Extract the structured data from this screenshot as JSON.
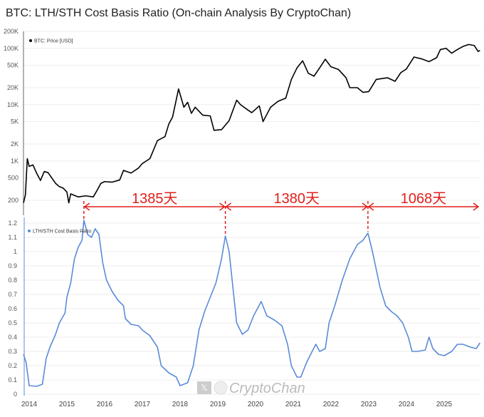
{
  "title": "BTC: LTH/STH Cost Basis Ratio (On-chain Analysis By CryptoChan)",
  "watermark": "CryptoChan",
  "colors": {
    "price": "#000000",
    "ratio": "#5b8bd9",
    "annotation": "#e0201b"
  },
  "chart_data": [
    {
      "type": "line",
      "scale": "log",
      "series": [
        {
          "name": "BTC: Price [USD]",
          "color": "#000000",
          "x": [
            2013.85,
            2013.9,
            2013.95,
            2014.0,
            2014.1,
            2014.2,
            2014.3,
            2014.4,
            2014.5,
            2014.7,
            2014.8,
            2014.9,
            2015.0,
            2015.05,
            2015.1,
            2015.3,
            2015.5,
            2015.7,
            2015.8,
            2015.9,
            2016.0,
            2016.2,
            2016.4,
            2016.5,
            2016.7,
            2016.9,
            2017.0,
            2017.2,
            2017.4,
            2017.6,
            2017.7,
            2017.8,
            2017.96,
            2018.1,
            2018.2,
            2018.3,
            2018.4,
            2018.6,
            2018.8,
            2018.9,
            2019.1,
            2019.3,
            2019.5,
            2019.6,
            2019.8,
            2019.9,
            2020.1,
            2020.2,
            2020.4,
            2020.6,
            2020.8,
            2020.95,
            2021.1,
            2021.25,
            2021.4,
            2021.55,
            2021.7,
            2021.85,
            2022.0,
            2022.2,
            2022.4,
            2022.5,
            2022.7,
            2022.85,
            2023.0,
            2023.2,
            2023.5,
            2023.7,
            2023.85,
            2024.0,
            2024.2,
            2024.4,
            2024.6,
            2024.8,
            2024.9,
            2025.05,
            2025.2,
            2025.35,
            2025.5,
            2025.65,
            2025.8,
            2025.9,
            2025.95
          ],
          "y": [
            180,
            250,
            1100,
            800,
            850,
            600,
            450,
            650,
            620,
            400,
            350,
            330,
            280,
            180,
            260,
            230,
            240,
            230,
            300,
            400,
            430,
            420,
            460,
            680,
            610,
            750,
            900,
            1100,
            2300,
            2700,
            4500,
            6000,
            19000,
            9000,
            11000,
            7000,
            9000,
            6500,
            6300,
            3500,
            3600,
            5200,
            12000,
            10000,
            8000,
            7200,
            9500,
            5000,
            9000,
            11500,
            13000,
            28000,
            45000,
            60000,
            36000,
            32000,
            45000,
            64000,
            47000,
            42000,
            30000,
            20000,
            20000,
            16500,
            17000,
            28000,
            30000,
            26000,
            37000,
            43000,
            70000,
            65000,
            58000,
            68000,
            95000,
            100000,
            82000,
            95000,
            108000,
            117000,
            112000,
            88000,
            92000
          ]
        }
      ],
      "yticks": [
        "200K",
        "100K",
        "50K",
        "20K",
        "10K",
        "5K",
        "2K",
        "1K",
        "500",
        "200"
      ],
      "ytick_values": [
        200000,
        100000,
        50000,
        20000,
        10000,
        5000,
        2000,
        1000,
        500,
        200
      ],
      "legend_placement": "top-left"
    },
    {
      "type": "line",
      "series": [
        {
          "name": "LTH/STH Cost Basis Ratio",
          "color": "#5b8bd9",
          "x": [
            2013.85,
            2013.92,
            2014.0,
            2014.2,
            2014.35,
            2014.45,
            2014.55,
            2014.7,
            2014.8,
            2014.95,
            2015.0,
            2015.1,
            2015.2,
            2015.3,
            2015.4,
            2015.45,
            2015.55,
            2015.65,
            2015.75,
            2015.85,
            2015.95,
            2016.05,
            2016.2,
            2016.35,
            2016.5,
            2016.55,
            2016.7,
            2016.9,
            2017.0,
            2017.2,
            2017.4,
            2017.5,
            2017.7,
            2017.9,
            2018.0,
            2018.2,
            2018.35,
            2018.5,
            2018.65,
            2018.8,
            2018.95,
            2019.1,
            2019.2,
            2019.3,
            2019.4,
            2019.5,
            2019.65,
            2019.8,
            2019.95,
            2020.05,
            2020.15,
            2020.3,
            2020.5,
            2020.7,
            2020.85,
            2020.95,
            2021.1,
            2021.2,
            2021.35,
            2021.5,
            2021.6,
            2021.7,
            2021.85,
            2021.95,
            2022.1,
            2022.3,
            2022.5,
            2022.7,
            2022.85,
            2022.98,
            2023.1,
            2023.3,
            2023.45,
            2023.6,
            2023.75,
            2023.9,
            2024.05,
            2024.15,
            2024.3,
            2024.5,
            2024.6,
            2024.7,
            2024.85,
            2025.0,
            2025.2,
            2025.35,
            2025.5,
            2025.7,
            2025.85,
            2025.95
          ],
          "y": [
            0.28,
            0.22,
            0.06,
            0.055,
            0.07,
            0.25,
            0.33,
            0.42,
            0.5,
            0.57,
            0.68,
            0.78,
            0.95,
            1.03,
            1.08,
            1.22,
            1.12,
            1.1,
            1.16,
            1.12,
            0.92,
            0.8,
            0.72,
            0.66,
            0.62,
            0.53,
            0.49,
            0.48,
            0.45,
            0.41,
            0.33,
            0.2,
            0.15,
            0.12,
            0.06,
            0.08,
            0.2,
            0.45,
            0.58,
            0.68,
            0.78,
            0.95,
            1.11,
            1.0,
            0.75,
            0.5,
            0.42,
            0.45,
            0.55,
            0.6,
            0.65,
            0.55,
            0.52,
            0.48,
            0.35,
            0.2,
            0.12,
            0.12,
            0.22,
            0.3,
            0.35,
            0.3,
            0.32,
            0.5,
            0.62,
            0.8,
            0.95,
            1.05,
            1.08,
            1.13,
            1.0,
            0.75,
            0.62,
            0.58,
            0.55,
            0.5,
            0.4,
            0.3,
            0.3,
            0.31,
            0.4,
            0.32,
            0.28,
            0.27,
            0.3,
            0.35,
            0.35,
            0.33,
            0.32,
            0.36
          ]
        }
      ],
      "yticks": [
        "1.2",
        "1.1",
        "1",
        "0.9",
        "0.8",
        "0.7",
        "0.6",
        "0.5",
        "0.4",
        "0.3",
        "0.2",
        "0.1",
        "0"
      ],
      "ylim": [
        0,
        1.25
      ],
      "legend_placement": "top-left"
    }
  ],
  "xticks": [
    "2014",
    "2015",
    "2016",
    "2017",
    "2018",
    "2019",
    "2020",
    "2021",
    "2022",
    "2023",
    "2024",
    "2025"
  ],
  "annotations": [
    {
      "from": 2015.45,
      "to": 2019.2,
      "label": "1385天"
    },
    {
      "from": 2019.2,
      "to": 2022.98,
      "label": "1380天"
    },
    {
      "from": 2022.98,
      "to": 2025.95,
      "label": "1068天"
    }
  ]
}
